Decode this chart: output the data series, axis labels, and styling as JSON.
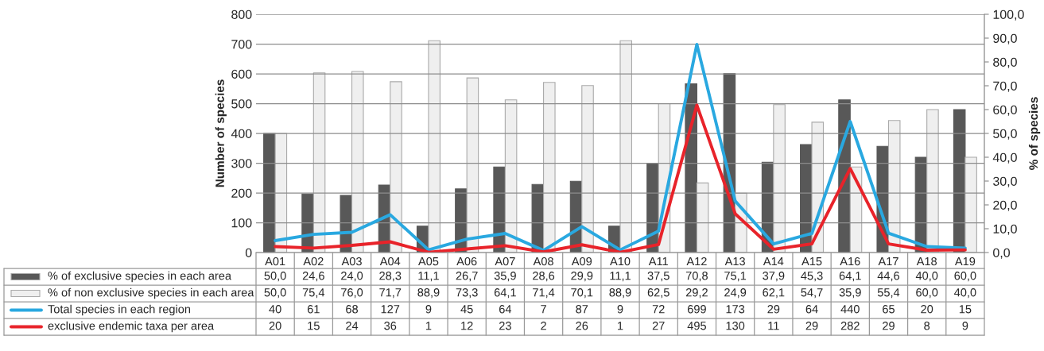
{
  "chart_data": {
    "type": "bar",
    "ylabel": "Number of species",
    "y2label": "% of species",
    "categories": [
      "A01",
      "A02",
      "A03",
      "A04",
      "A05",
      "A06",
      "A07",
      "A08",
      "A09",
      "A10",
      "A11",
      "A12",
      "A13",
      "A14",
      "A15",
      "A16",
      "A17",
      "A18",
      "A19"
    ],
    "series": [
      {
        "name": "% of exclusive species in each area",
        "axis": "y2",
        "color": "#585858",
        "values": [
          50.0,
          24.6,
          24.0,
          28.3,
          11.1,
          26.7,
          35.9,
          28.6,
          29.9,
          11.1,
          37.5,
          70.8,
          75.1,
          37.9,
          45.3,
          64.1,
          44.6,
          40.0,
          60.0
        ],
        "value_labels": [
          "50,0",
          "24,6",
          "24,0",
          "28,3",
          "11,1",
          "26,7",
          "35,9",
          "28,6",
          "29,9",
          "11,1",
          "37,5",
          "70,8",
          "75,1",
          "37,9",
          "45,3",
          "64,1",
          "44,6",
          "40,0",
          "60,0"
        ]
      },
      {
        "name": "% of non exclusive species in each area",
        "axis": "y2",
        "color": "#efefef",
        "values": [
          50.0,
          75.4,
          76.0,
          71.7,
          88.9,
          73.3,
          64.1,
          71.4,
          70.1,
          88.9,
          62.5,
          29.2,
          24.9,
          62.1,
          54.7,
          35.9,
          55.4,
          60.0,
          40.0
        ],
        "value_labels": [
          "50,0",
          "75,4",
          "76,0",
          "71,7",
          "88,9",
          "73,3",
          "64,1",
          "71,4",
          "70,1",
          "88,9",
          "62,5",
          "29,2",
          "24,9",
          "62,1",
          "54,7",
          "35,9",
          "55,4",
          "60,0",
          "40,0"
        ]
      },
      {
        "name": "Total species in each region",
        "type": "line",
        "color": "#29a8e0",
        "values": [
          40,
          61,
          68,
          127,
          9,
          45,
          64,
          7,
          87,
          9,
          72,
          699,
          173,
          29,
          64,
          440,
          65,
          20,
          15
        ]
      },
      {
        "name": "exclusive endemic taxa per area",
        "type": "line",
        "color": "#e8232a",
        "values": [
          20,
          15,
          24,
          36,
          1,
          12,
          23,
          2,
          26,
          1,
          27,
          495,
          130,
          11,
          29,
          282,
          29,
          8,
          9
        ]
      }
    ],
    "ylim": [
      0,
      800
    ],
    "yticks": [
      0,
      100,
      200,
      300,
      400,
      500,
      600,
      700,
      800
    ],
    "y2lim": [
      0,
      100
    ],
    "y2ticks": [
      {
        "value": 0,
        "label": "0,0"
      },
      {
        "value": 10,
        "label": "10,0"
      },
      {
        "value": 20,
        "label": "20,0"
      },
      {
        "value": 30,
        "label": "30,0"
      },
      {
        "value": 40,
        "label": "40,0"
      },
      {
        "value": 50,
        "label": "50,0"
      },
      {
        "value": 60,
        "label": "60,0"
      },
      {
        "value": 70,
        "label": "70,0"
      },
      {
        "value": 80,
        "label": "80,0"
      },
      {
        "value": 90,
        "label": "90,0"
      },
      {
        "value": 100,
        "label": "100,0"
      }
    ],
    "grid": "y",
    "legend": "bottom",
    "data_labels": true,
    "line_style": "solid",
    "marker": "none"
  }
}
